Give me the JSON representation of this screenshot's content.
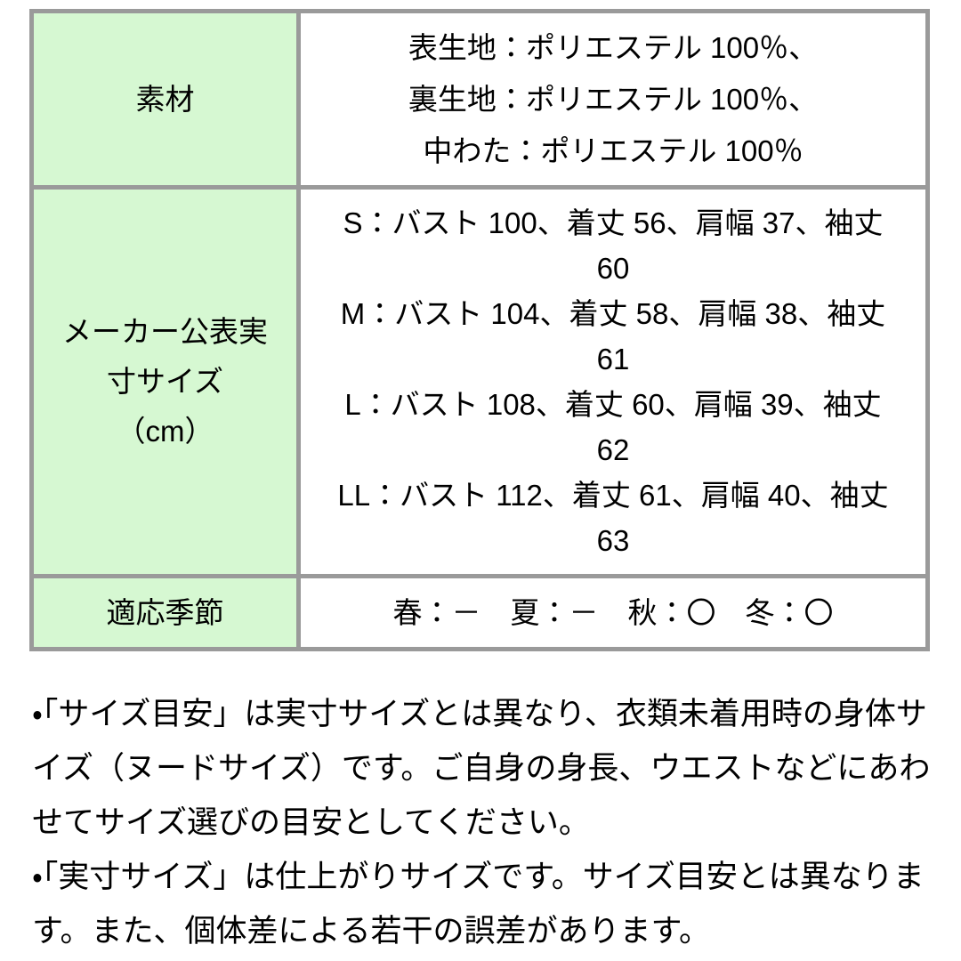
{
  "colors": {
    "page_background": "#ffffff",
    "header_cell_background": "#d6f8d2",
    "table_border": "#9a9a9a",
    "text": "#000000"
  },
  "table": {
    "rows": [
      {
        "label": "素材",
        "value": "表生地：ポリエステル 100％、\n裏生地：ポリエステル 100％、\n中わた：ポリエステル 100％"
      },
      {
        "label": "メーカー公表実\n寸サイズ\n（cm）",
        "value": "S：バスト 100、着丈 56、肩幅 37、袖丈\n60\nM：バスト 104、着丈 58、肩幅 38、袖丈\n61\nL：バスト 108、着丈 60、肩幅 39、袖丈\n62\nLL：バスト 112、着丈 61、肩幅 40、袖丈\n63"
      },
      {
        "label": "適応季節",
        "value": "春：－　夏：－　秋：〇　冬：〇"
      }
    ]
  },
  "notes": [
    "・「サイズ目安」は実寸サイズとは異なり、衣類未着用時の身体サイズ（ヌードサイズ）です。ご自身の身長、ウエストなどにあわせてサイズ選びの目安としてください。",
    "・「実寸サイズ」は仕上がりサイズです。サイズ目安とは異なります。また、個体差による若干の誤差があります。"
  ]
}
